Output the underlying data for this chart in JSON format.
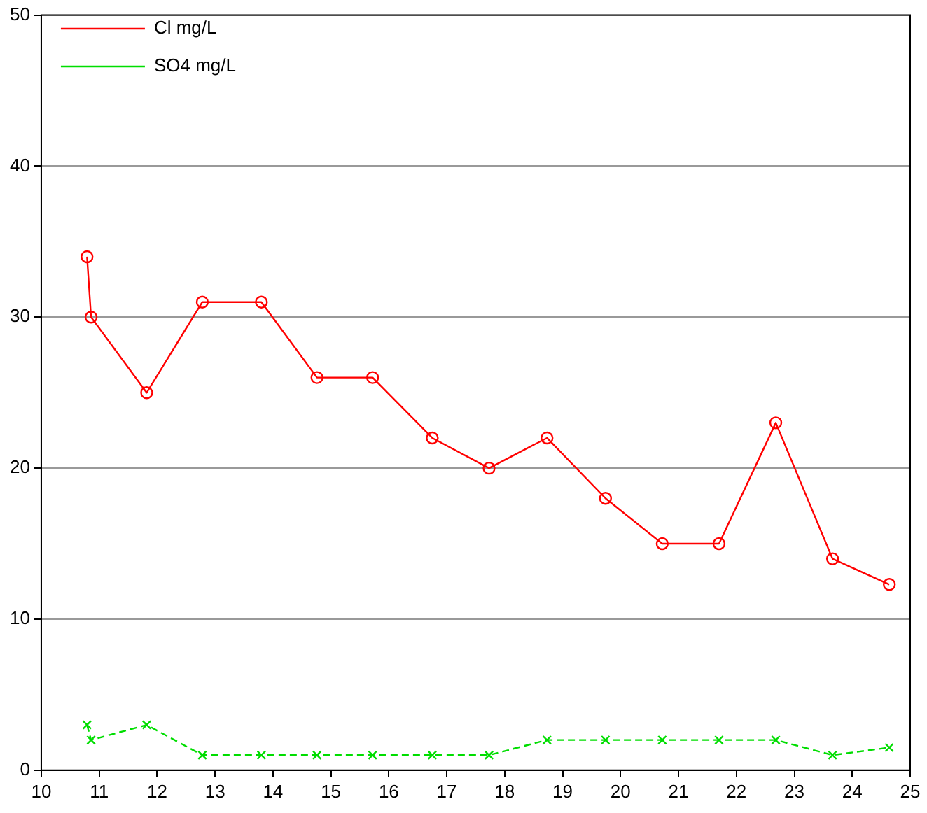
{
  "chart_data": {
    "type": "line",
    "x": [
      10.79,
      10.86,
      11.82,
      12.78,
      13.8,
      14.76,
      15.72,
      16.75,
      17.73,
      18.73,
      19.74,
      20.72,
      21.7,
      22.68,
      23.66,
      24.64
    ],
    "series": [
      {
        "name": "Cl mg/L",
        "color": "#ff0000",
        "marker": "circle",
        "line_style": "solid",
        "values": [
          34,
          30,
          25,
          31,
          31,
          26,
          26,
          22,
          20,
          22,
          18,
          15,
          15,
          23,
          14,
          12.3
        ]
      },
      {
        "name": "SO4 mg/L",
        "color": "#00dd00",
        "marker": "cross",
        "line_style": "dashed",
        "values": [
          3,
          2,
          3,
          1,
          1,
          1,
          1,
          1,
          1,
          2,
          2,
          2,
          2,
          2,
          1,
          1.5
        ]
      }
    ],
    "xlim": [
      10,
      25
    ],
    "xticks": [
      10,
      11,
      12,
      13,
      14,
      15,
      16,
      17,
      18,
      19,
      20,
      21,
      22,
      23,
      24,
      25
    ],
    "ylim": [
      0,
      50
    ],
    "yticks": [
      0,
      10,
      20,
      30,
      40,
      50
    ],
    "grid": "y",
    "legend": "top left"
  }
}
